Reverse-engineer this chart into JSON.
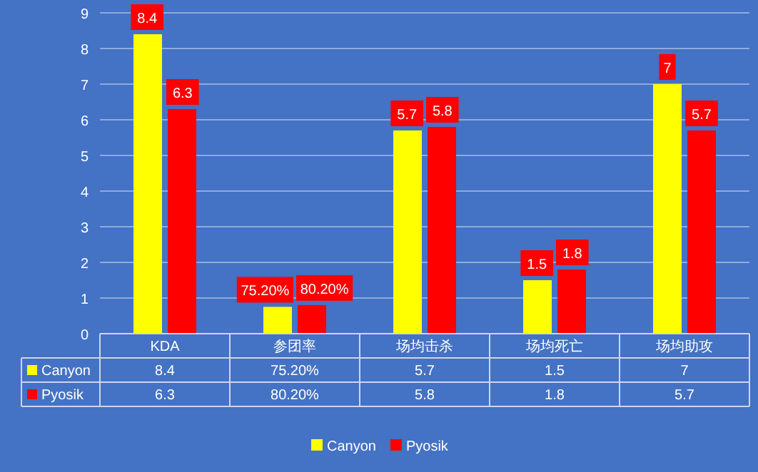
{
  "chart_data": {
    "type": "bar",
    "categories": [
      "KDA",
      "参团率",
      "场均击杀",
      "场均死亡",
      "场均助攻"
    ],
    "series": [
      {
        "name": "Canyon",
        "color": "#ffff00",
        "values": [
          8.4,
          0.752,
          5.7,
          1.5,
          7
        ],
        "value_labels": [
          "8.4",
          "75.20%",
          "5.7",
          "1.5",
          "7"
        ]
      },
      {
        "name": "Pyosik",
        "color": "#ff0000",
        "values": [
          6.3,
          0.802,
          5.8,
          1.8,
          5.7
        ],
        "value_labels": [
          "6.3",
          "80.20%",
          "5.8",
          "1.8",
          "5.7"
        ]
      }
    ],
    "ylim": [
      0,
      9
    ],
    "yticks": [
      0,
      1,
      2,
      3,
      4,
      5,
      6,
      7,
      8,
      9
    ],
    "grid": "y",
    "legend": "bottom"
  }
}
